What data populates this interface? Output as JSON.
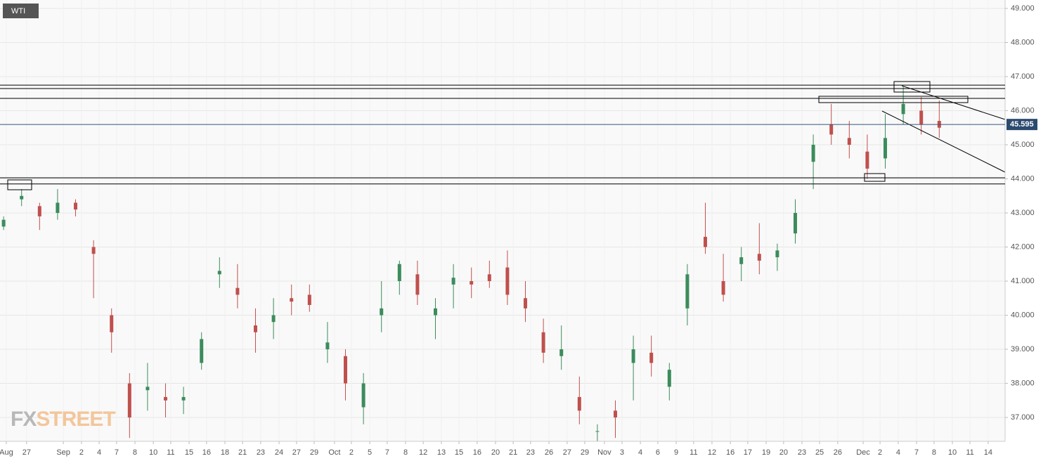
{
  "chart_data": {
    "type": "candlestick",
    "symbol": "WTI",
    "watermark_parts": [
      "FX",
      "STREET"
    ],
    "up_color": "#3c8c5c",
    "down_color": "#c0504d",
    "ylim": [
      36.3,
      49.247
    ],
    "yticks": [
      {
        "value": 37,
        "label": "37.000"
      },
      {
        "value": 38,
        "label": "38.000"
      },
      {
        "value": 39,
        "label": "39.000"
      },
      {
        "value": 40,
        "label": "40.000"
      },
      {
        "value": 41,
        "label": "41.000"
      },
      {
        "value": 42,
        "label": "42.000"
      },
      {
        "value": 43,
        "label": "43.000"
      },
      {
        "value": 44,
        "label": "44.000"
      },
      {
        "value": 45,
        "label": "45.000"
      },
      {
        "value": 46,
        "label": "46.000"
      },
      {
        "value": 47,
        "label": "47.000"
      },
      {
        "value": 48,
        "label": "48.000"
      },
      {
        "value": 49,
        "label": "49.000"
      }
    ],
    "xlim": [
      0,
      55.86
    ],
    "xticks": [
      {
        "value": 0.35,
        "label": "Aug"
      },
      {
        "value": 1.48,
        "label": "27"
      },
      {
        "value": 3.52,
        "label": "Sep"
      },
      {
        "value": 4.53,
        "label": "2"
      },
      {
        "value": 5.51,
        "label": "4"
      },
      {
        "value": 6.48,
        "label": "7"
      },
      {
        "value": 7.5,
        "label": "8"
      },
      {
        "value": 8.52,
        "label": "10"
      },
      {
        "value": 9.49,
        "label": "11"
      },
      {
        "value": 10.51,
        "label": "15"
      },
      {
        "value": 11.48,
        "label": "16"
      },
      {
        "value": 12.5,
        "label": "18"
      },
      {
        "value": 13.48,
        "label": "21"
      },
      {
        "value": 14.49,
        "label": "23"
      },
      {
        "value": 15.51,
        "label": "24"
      },
      {
        "value": 16.48,
        "label": "27"
      },
      {
        "value": 17.46,
        "label": "29"
      },
      {
        "value": 18.59,
        "label": "Oct"
      },
      {
        "value": 19.53,
        "label": "2"
      },
      {
        "value": 20.55,
        "label": "5"
      },
      {
        "value": 21.52,
        "label": "7"
      },
      {
        "value": 22.54,
        "label": "8"
      },
      {
        "value": 23.52,
        "label": "12"
      },
      {
        "value": 24.53,
        "label": "13"
      },
      {
        "value": 25.51,
        "label": "15"
      },
      {
        "value": 26.52,
        "label": "16"
      },
      {
        "value": 27.54,
        "label": "20"
      },
      {
        "value": 28.52,
        "label": "21"
      },
      {
        "value": 29.49,
        "label": "23"
      },
      {
        "value": 30.51,
        "label": "26"
      },
      {
        "value": 31.52,
        "label": "27"
      },
      {
        "value": 32.5,
        "label": "29"
      },
      {
        "value": 33.59,
        "label": "Nov"
      },
      {
        "value": 34.57,
        "label": "3"
      },
      {
        "value": 35.59,
        "label": "4"
      },
      {
        "value": 36.56,
        "label": "6"
      },
      {
        "value": 37.58,
        "label": "9"
      },
      {
        "value": 38.55,
        "label": "11"
      },
      {
        "value": 39.57,
        "label": "12"
      },
      {
        "value": 40.59,
        "label": "16"
      },
      {
        "value": 41.56,
        "label": "17"
      },
      {
        "value": 42.58,
        "label": "19"
      },
      {
        "value": 43.55,
        "label": "20"
      },
      {
        "value": 44.57,
        "label": "23"
      },
      {
        "value": 45.55,
        "label": "25"
      },
      {
        "value": 46.56,
        "label": "26"
      },
      {
        "value": 47.97,
        "label": "Dec"
      },
      {
        "value": 48.91,
        "label": "2"
      },
      {
        "value": 49.92,
        "label": "4"
      },
      {
        "value": 50.94,
        "label": "7"
      },
      {
        "value": 51.91,
        "label": "8"
      },
      {
        "value": 52.93,
        "label": "10"
      },
      {
        "value": 53.91,
        "label": "11"
      },
      {
        "value": 54.92,
        "label": "14"
      }
    ],
    "x": [
      0.2,
      1.2,
      2.2,
      3.2,
      4.2,
      5.2,
      6.2,
      7.2,
      8.2,
      9.2,
      10.2,
      11.2,
      12.2,
      13.2,
      14.2,
      15.2,
      16.2,
      17.2,
      18.2,
      19.2,
      20.2,
      21.2,
      22.2,
      23.2,
      24.2,
      25.2,
      26.2,
      27.2,
      28.2,
      29.2,
      30.2,
      31.2,
      32.2,
      33.2,
      34.2,
      35.2,
      36.2,
      37.2,
      38.2,
      39.2,
      40.2,
      41.2,
      42.2,
      43.2,
      44.2,
      45.2,
      46.2,
      47.2,
      48.2,
      49.2,
      50.2,
      51.2,
      52.2
    ],
    "open": [
      42.6,
      43.4,
      43.2,
      43.0,
      43.3,
      42.0,
      40.0,
      38.0,
      37.8,
      37.6,
      37.5,
      38.6,
      41.2,
      40.8,
      39.7,
      39.8,
      40.5,
      40.6,
      39.0,
      38.8,
      37.3,
      40.0,
      41.0,
      41.2,
      40.0,
      40.9,
      41.0,
      41.2,
      41.4,
      40.5,
      39.5,
      38.8,
      37.6,
      36.6,
      37.2,
      38.6,
      38.9,
      37.9,
      40.2,
      42.3,
      41.0,
      41.5,
      41.8,
      41.7,
      42.4,
      44.5,
      45.6,
      45.2,
      44.8,
      44.6,
      45.9,
      46.0,
      45.7
    ],
    "high": [
      42.9,
      43.7,
      43.3,
      43.7,
      43.4,
      42.2,
      40.2,
      38.3,
      38.6,
      38.0,
      37.9,
      39.5,
      41.7,
      41.5,
      40.2,
      40.5,
      40.9,
      40.9,
      39.8,
      39.0,
      38.3,
      41.0,
      41.6,
      41.6,
      40.5,
      41.5,
      41.4,
      41.6,
      41.9,
      41.0,
      39.9,
      39.7,
      38.2,
      36.8,
      37.5,
      39.4,
      39.4,
      38.6,
      41.5,
      43.3,
      41.8,
      42.0,
      42.7,
      42.1,
      43.4,
      45.3,
      46.2,
      45.7,
      45.3,
      45.9,
      46.7,
      46.4,
      46.3
    ],
    "low": [
      42.5,
      43.2,
      42.5,
      42.8,
      42.9,
      40.5,
      38.9,
      36.4,
      37.2,
      37.0,
      37.1,
      38.4,
      40.8,
      40.2,
      38.9,
      39.3,
      40.0,
      40.1,
      38.6,
      37.5,
      36.8,
      39.5,
      40.6,
      40.3,
      39.3,
      40.2,
      40.5,
      40.8,
      40.3,
      39.8,
      38.6,
      38.4,
      36.8,
      36.3,
      36.4,
      37.5,
      38.2,
      37.5,
      39.7,
      41.8,
      40.4,
      41.0,
      41.2,
      41.3,
      42.1,
      43.7,
      45.0,
      44.6,
      44.0,
      44.3,
      45.6,
      45.3,
      45.2
    ],
    "close": [
      42.8,
      43.5,
      42.9,
      43.3,
      43.1,
      41.8,
      39.5,
      37.0,
      37.9,
      37.5,
      37.6,
      39.3,
      41.3,
      40.6,
      39.5,
      40.0,
      40.4,
      40.3,
      39.2,
      38.0,
      38.0,
      40.2,
      41.5,
      40.6,
      40.2,
      41.1,
      40.9,
      41.0,
      40.6,
      40.2,
      38.9,
      39.0,
      37.2,
      36.6,
      37.0,
      39.0,
      38.6,
      38.4,
      41.2,
      42.0,
      40.6,
      41.7,
      41.6,
      41.9,
      43.0,
      45.0,
      45.3,
      45.0,
      44.3,
      45.2,
      46.2,
      45.6,
      45.5
    ],
    "levels": [
      46.75,
      46.65,
      46.36,
      44.03,
      43.85
    ],
    "last_price": 45.595
  }
}
